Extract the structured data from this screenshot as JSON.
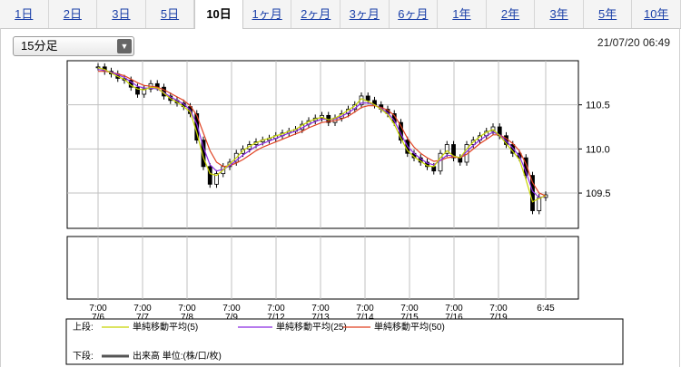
{
  "tabs": [
    {
      "label": "1日",
      "active": false
    },
    {
      "label": "2日",
      "active": false
    },
    {
      "label": "3日",
      "active": false
    },
    {
      "label": "5日",
      "active": false
    },
    {
      "label": "10日",
      "active": true
    },
    {
      "label": "1ヶ月",
      "active": false
    },
    {
      "label": "2ヶ月",
      "active": false
    },
    {
      "label": "3ヶ月",
      "active": false
    },
    {
      "label": "6ヶ月",
      "active": false
    },
    {
      "label": "1年",
      "active": false
    },
    {
      "label": "2年",
      "active": false
    },
    {
      "label": "3年",
      "active": false
    },
    {
      "label": "5年",
      "active": false
    },
    {
      "label": "10年",
      "active": false
    }
  ],
  "interval_select": {
    "value": "15分足"
  },
  "timestamp": "21/07/20 06:49",
  "colors": {
    "candle_up": "#000000",
    "sma5": "#c8d400",
    "sma25": "#8a2be2",
    "sma50": "#e04020",
    "volume_legend": "#555555"
  },
  "legend": {
    "upper_label": "上段:",
    "lower_label": "下段:",
    "sma5": "単純移動平均(5)",
    "sma25": "単純移動平均(25)",
    "sma50": "単純移動平均(50)",
    "volume": "出来高 単位:(株/口/枚)"
  },
  "chart_data": {
    "type": "line",
    "x_ticks": [
      {
        "time": "7:00",
        "date": "7/6"
      },
      {
        "time": "7:00",
        "date": "7/7"
      },
      {
        "time": "7:00",
        "date": "7/8"
      },
      {
        "time": "7:00",
        "date": "7/9"
      },
      {
        "time": "7:00",
        "date": "7/12"
      },
      {
        "time": "7:00",
        "date": "7/13"
      },
      {
        "time": "7:00",
        "date": "7/14"
      },
      {
        "time": "7:00",
        "date": "7/15"
      },
      {
        "time": "7:00",
        "date": "7/16"
      },
      {
        "time": "7:00",
        "date": "7/19"
      },
      {
        "time": "6:45",
        "date": ""
      }
    ],
    "y_ticks": [
      110.5,
      110.0,
      109.5
    ],
    "ylim": [
      109.1,
      111.0
    ],
    "price_close": [
      110.93,
      110.88,
      110.85,
      110.8,
      110.78,
      110.7,
      110.62,
      110.68,
      110.74,
      110.7,
      110.6,
      110.55,
      110.52,
      110.48,
      110.4,
      110.1,
      109.8,
      109.6,
      109.72,
      109.8,
      109.85,
      109.95,
      110.0,
      110.05,
      110.08,
      110.1,
      110.12,
      110.15,
      110.18,
      110.2,
      110.22,
      110.28,
      110.32,
      110.35,
      110.38,
      110.3,
      110.35,
      110.4,
      110.45,
      110.5,
      110.6,
      110.55,
      110.5,
      110.45,
      110.4,
      110.3,
      110.1,
      109.95,
      109.9,
      109.85,
      109.8,
      109.75,
      109.95,
      110.05,
      109.9,
      109.85,
      110.05,
      110.1,
      110.15,
      110.2,
      110.25,
      110.15,
      110.05,
      109.95,
      109.9,
      109.7,
      109.3,
      109.45,
      109.48
    ],
    "sma5": [
      110.92,
      110.9,
      110.86,
      110.82,
      110.79,
      110.72,
      110.68,
      110.67,
      110.7,
      110.69,
      110.63,
      110.57,
      110.53,
      110.48,
      110.42,
      110.18,
      109.9,
      109.72,
      109.7,
      109.76,
      109.83,
      109.9,
      109.98,
      110.03,
      110.07,
      110.1,
      110.12,
      110.15,
      110.17,
      110.2,
      110.22,
      110.27,
      110.31,
      110.34,
      110.36,
      110.33,
      110.35,
      110.39,
      110.44,
      110.49,
      110.57,
      110.54,
      110.5,
      110.45,
      110.39,
      110.28,
      110.12,
      109.98,
      109.91,
      109.86,
      109.81,
      109.8,
      109.9,
      109.98,
      109.92,
      109.9,
      110.0,
      110.08,
      110.14,
      110.19,
      110.22,
      110.15,
      110.06,
      109.97,
      109.88,
      109.65,
      109.4,
      109.44,
      109.47
    ],
    "sma25": [
      110.9,
      110.89,
      110.87,
      110.84,
      110.81,
      110.76,
      110.71,
      110.69,
      110.69,
      110.68,
      110.64,
      110.59,
      110.55,
      110.51,
      110.44,
      110.28,
      110.02,
      109.82,
      109.75,
      109.77,
      109.81,
      109.87,
      109.93,
      109.98,
      110.03,
      110.06,
      110.09,
      110.12,
      110.15,
      110.18,
      110.2,
      110.24,
      110.28,
      110.31,
      110.34,
      110.33,
      110.34,
      110.37,
      110.41,
      110.46,
      110.52,
      110.52,
      110.5,
      110.46,
      110.41,
      110.32,
      110.17,
      110.03,
      109.95,
      109.89,
      109.84,
      109.82,
      109.87,
      109.93,
      109.92,
      109.9,
      109.97,
      110.04,
      110.1,
      110.15,
      110.19,
      110.16,
      110.09,
      110.01,
      109.92,
      109.74,
      109.52,
      109.45,
      109.46
    ],
    "sma50": [
      110.88,
      110.88,
      110.87,
      110.85,
      110.83,
      110.79,
      110.75,
      110.72,
      110.71,
      110.7,
      110.67,
      110.63,
      110.59,
      110.55,
      110.49,
      110.38,
      110.18,
      109.98,
      109.85,
      109.8,
      109.81,
      109.84,
      109.88,
      109.93,
      109.98,
      110.02,
      110.05,
      110.08,
      110.11,
      110.14,
      110.17,
      110.2,
      110.24,
      110.27,
      110.3,
      110.31,
      110.32,
      110.34,
      110.37,
      110.42,
      110.47,
      110.49,
      110.49,
      110.47,
      110.44,
      110.38,
      110.26,
      110.12,
      110.02,
      109.95,
      109.9,
      109.86,
      109.87,
      109.9,
      109.91,
      109.9,
      109.94,
      110.0,
      110.06,
      110.11,
      110.16,
      110.16,
      110.12,
      110.06,
      109.98,
      109.83,
      109.62,
      109.5,
      109.47
    ]
  }
}
